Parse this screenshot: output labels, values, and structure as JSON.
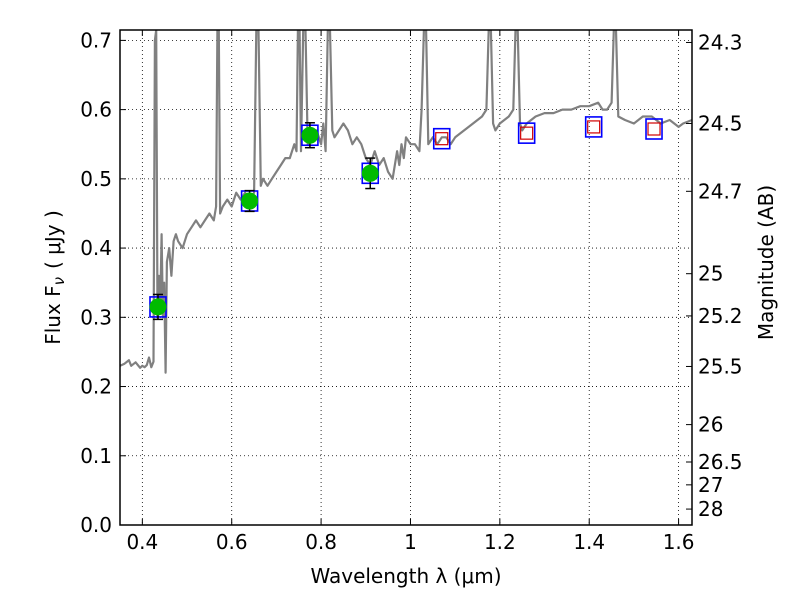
{
  "chart_data": {
    "type": "line",
    "xlabel": "Wavelength  λ (μm)",
    "ylabel": "Flux  F",
    "ylabel_sub": "ν",
    "ylabel_unit": "( μJy )",
    "y2label": "Magnitude (AB)",
    "xlim": [
      0.35,
      1.63
    ],
    "ylim": [
      0.0,
      0.715
    ],
    "grid": true,
    "x_ticks": [
      {
        "value": 0.4,
        "label": "0.4"
      },
      {
        "value": 0.6,
        "label": "0.6"
      },
      {
        "value": 0.8,
        "label": "0.8"
      },
      {
        "value": 1.0,
        "label": "1"
      },
      {
        "value": 1.2,
        "label": "1.2"
      },
      {
        "value": 1.4,
        "label": "1.4"
      },
      {
        "value": 1.6,
        "label": "1.6"
      }
    ],
    "y_ticks": [
      {
        "value": 0.0,
        "label": "0.0"
      },
      {
        "value": 0.1,
        "label": "0.1"
      },
      {
        "value": 0.2,
        "label": "0.2"
      },
      {
        "value": 0.3,
        "label": "0.3"
      },
      {
        "value": 0.4,
        "label": "0.4"
      },
      {
        "value": 0.5,
        "label": "0.5"
      },
      {
        "value": 0.6,
        "label": "0.6"
      },
      {
        "value": 0.7,
        "label": "0.7"
      }
    ],
    "y2_ticks": [
      {
        "label": "24.3",
        "flux": 0.697
      },
      {
        "label": "24.5",
        "flux": 0.58
      },
      {
        "label": "24.7",
        "flux": 0.482
      },
      {
        "label": "25",
        "flux": 0.363
      },
      {
        "label": "25.2",
        "flux": 0.302
      },
      {
        "label": "25.5",
        "flux": 0.229
      },
      {
        "label": "26",
        "flux": 0.145
      },
      {
        "label": "26.5",
        "flux": 0.091
      },
      {
        "label": "27",
        "flux": 0.058
      },
      {
        "label": "28",
        "flux": 0.023
      }
    ],
    "series": [
      {
        "kind": "spectrum",
        "color": "#808080",
        "points": [
          [
            0.35,
            0.23
          ],
          [
            0.36,
            0.233
          ],
          [
            0.37,
            0.238
          ],
          [
            0.375,
            0.23
          ],
          [
            0.385,
            0.235
          ],
          [
            0.395,
            0.227
          ],
          [
            0.4,
            0.23
          ],
          [
            0.405,
            0.228
          ],
          [
            0.41,
            0.231
          ],
          [
            0.415,
            0.242
          ],
          [
            0.42,
            0.228
          ],
          [
            0.425,
            0.236
          ],
          [
            0.428,
            0.7
          ],
          [
            0.431,
            0.715
          ],
          [
            0.434,
            0.3
          ],
          [
            0.437,
            0.36
          ],
          [
            0.44,
            0.31
          ],
          [
            0.443,
            0.42
          ],
          [
            0.446,
            0.3
          ],
          [
            0.449,
            0.35
          ],
          [
            0.452,
            0.22
          ],
          [
            0.455,
            0.38
          ],
          [
            0.46,
            0.4
          ],
          [
            0.465,
            0.36
          ],
          [
            0.47,
            0.41
          ],
          [
            0.475,
            0.42
          ],
          [
            0.48,
            0.41
          ],
          [
            0.49,
            0.4
          ],
          [
            0.5,
            0.42
          ],
          [
            0.51,
            0.43
          ],
          [
            0.52,
            0.44
          ],
          [
            0.53,
            0.43
          ],
          [
            0.54,
            0.44
          ],
          [
            0.55,
            0.45
          ],
          [
            0.56,
            0.44
          ],
          [
            0.565,
            0.46
          ],
          [
            0.568,
            0.715
          ],
          [
            0.571,
            0.715
          ],
          [
            0.574,
            0.45
          ],
          [
            0.58,
            0.46
          ],
          [
            0.59,
            0.47
          ],
          [
            0.6,
            0.46
          ],
          [
            0.61,
            0.48
          ],
          [
            0.62,
            0.47
          ],
          [
            0.63,
            0.48
          ],
          [
            0.64,
            0.47
          ],
          [
            0.65,
            0.48
          ],
          [
            0.655,
            0.715
          ],
          [
            0.66,
            0.715
          ],
          [
            0.665,
            0.49
          ],
          [
            0.67,
            0.5
          ],
          [
            0.68,
            0.49
          ],
          [
            0.69,
            0.5
          ],
          [
            0.7,
            0.51
          ],
          [
            0.71,
            0.52
          ],
          [
            0.72,
            0.53
          ],
          [
            0.73,
            0.53
          ],
          [
            0.74,
            0.55
          ],
          [
            0.745,
            0.54
          ],
          [
            0.748,
            0.715
          ],
          [
            0.752,
            0.715
          ],
          [
            0.755,
            0.54
          ],
          [
            0.76,
            0.715
          ],
          [
            0.765,
            0.715
          ],
          [
            0.77,
            0.55
          ],
          [
            0.78,
            0.56
          ],
          [
            0.79,
            0.57
          ],
          [
            0.8,
            0.55
          ],
          [
            0.805,
            0.58
          ],
          [
            0.81,
            0.54
          ],
          [
            0.815,
            0.715
          ],
          [
            0.82,
            0.715
          ],
          [
            0.825,
            0.57
          ],
          [
            0.83,
            0.56
          ],
          [
            0.84,
            0.57
          ],
          [
            0.85,
            0.58
          ],
          [
            0.86,
            0.57
          ],
          [
            0.87,
            0.55
          ],
          [
            0.88,
            0.56
          ],
          [
            0.89,
            0.55
          ],
          [
            0.9,
            0.53
          ],
          [
            0.91,
            0.52
          ],
          [
            0.92,
            0.54
          ],
          [
            0.93,
            0.52
          ],
          [
            0.94,
            0.53
          ],
          [
            0.95,
            0.51
          ],
          [
            0.96,
            0.5
          ],
          [
            0.97,
            0.54
          ],
          [
            0.975,
            0.52
          ],
          [
            0.98,
            0.55
          ],
          [
            0.985,
            0.53
          ],
          [
            0.99,
            0.56
          ],
          [
            1.0,
            0.55
          ],
          [
            1.01,
            0.55
          ],
          [
            1.02,
            0.54
          ],
          [
            1.025,
            0.6
          ],
          [
            1.03,
            0.715
          ],
          [
            1.035,
            0.715
          ],
          [
            1.04,
            0.55
          ],
          [
            1.05,
            0.56
          ],
          [
            1.06,
            0.55
          ],
          [
            1.07,
            0.56
          ],
          [
            1.08,
            0.56
          ],
          [
            1.09,
            0.55
          ],
          [
            1.1,
            0.56
          ],
          [
            1.12,
            0.57
          ],
          [
            1.14,
            0.58
          ],
          [
            1.16,
            0.59
          ],
          [
            1.17,
            0.6
          ],
          [
            1.175,
            0.715
          ],
          [
            1.18,
            0.715
          ],
          [
            1.185,
            0.58
          ],
          [
            1.19,
            0.57
          ],
          [
            1.2,
            0.58
          ],
          [
            1.22,
            0.59
          ],
          [
            1.23,
            0.6
          ],
          [
            1.235,
            0.715
          ],
          [
            1.24,
            0.715
          ],
          [
            1.245,
            0.58
          ],
          [
            1.25,
            0.57
          ],
          [
            1.26,
            0.58
          ],
          [
            1.28,
            0.59
          ],
          [
            1.3,
            0.595
          ],
          [
            1.32,
            0.595
          ],
          [
            1.34,
            0.6
          ],
          [
            1.36,
            0.6
          ],
          [
            1.38,
            0.605
          ],
          [
            1.4,
            0.605
          ],
          [
            1.42,
            0.61
          ],
          [
            1.43,
            0.6
          ],
          [
            1.44,
            0.6
          ],
          [
            1.45,
            0.61
          ],
          [
            1.455,
            0.715
          ],
          [
            1.46,
            0.715
          ],
          [
            1.465,
            0.59
          ],
          [
            1.48,
            0.585
          ],
          [
            1.5,
            0.58
          ],
          [
            1.52,
            0.59
          ],
          [
            1.54,
            0.59
          ],
          [
            1.56,
            0.58
          ],
          [
            1.58,
            0.585
          ],
          [
            1.6,
            0.575
          ],
          [
            1.61,
            0.58
          ],
          [
            1.63,
            0.585
          ]
        ]
      }
    ],
    "markers": {
      "box_color": "#0000ff",
      "observed_color": "#00bb00",
      "model_color": "#d00000",
      "observed": [
        {
          "x": 0.435,
          "y": 0.315,
          "err": 0.018
        },
        {
          "x": 0.64,
          "y": 0.468,
          "err": 0.015
        },
        {
          "x": 0.775,
          "y": 0.563,
          "err": 0.018
        },
        {
          "x": 0.91,
          "y": 0.508,
          "err": 0.022
        }
      ],
      "model_only": [
        {
          "x": 1.07,
          "y": 0.558
        },
        {
          "x": 1.26,
          "y": 0.566
        },
        {
          "x": 1.41,
          "y": 0.575
        },
        {
          "x": 1.545,
          "y": 0.572
        }
      ]
    }
  }
}
